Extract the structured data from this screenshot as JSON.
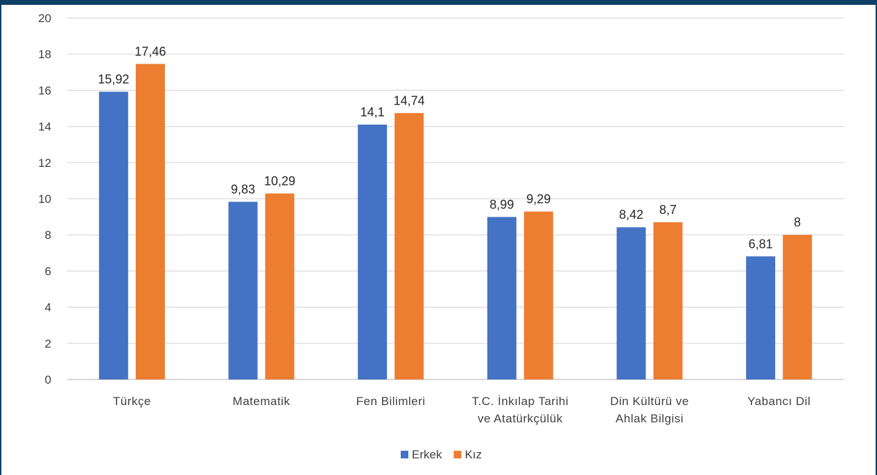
{
  "chart_data": {
    "type": "bar",
    "categories": [
      [
        "Türkçe"
      ],
      [
        "Matematik"
      ],
      [
        "Fen Bilimleri"
      ],
      [
        "T.C. İnkılap Tarihi",
        "ve Atatürkçülük"
      ],
      [
        "Din Kültürü ve",
        "Ahlak Bilgisi"
      ],
      [
        "Yabancı Dil"
      ]
    ],
    "series": [
      {
        "name": "Erkek",
        "color": "#4472c4",
        "values": [
          15.92,
          9.83,
          14.1,
          8.99,
          8.42,
          6.81
        ],
        "labels": [
          "15,92",
          "9,83",
          "14,1",
          "8,99",
          "8,42",
          "6,81"
        ]
      },
      {
        "name": "Kız",
        "color": "#ed7d31",
        "values": [
          17.46,
          10.29,
          14.74,
          9.29,
          8.7,
          8
        ],
        "labels": [
          "17,46",
          "10,29",
          "14,74",
          "9,29",
          "8,7",
          "8"
        ]
      }
    ],
    "ylim": [
      0,
      20
    ],
    "yticks": [
      0,
      2,
      4,
      6,
      8,
      10,
      12,
      14,
      16,
      18,
      20
    ],
    "grid": true,
    "legend": "bottom-center"
  }
}
